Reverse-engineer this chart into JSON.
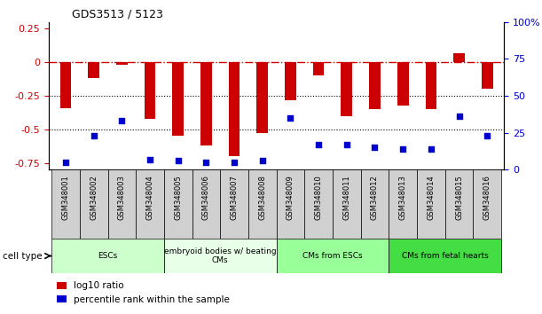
{
  "title": "GDS3513 / 5123",
  "samples": [
    "GSM348001",
    "GSM348002",
    "GSM348003",
    "GSM348004",
    "GSM348005",
    "GSM348006",
    "GSM348007",
    "GSM348008",
    "GSM348009",
    "GSM348010",
    "GSM348011",
    "GSM348012",
    "GSM348013",
    "GSM348014",
    "GSM348015",
    "GSM348016"
  ],
  "log10_ratio": [
    -0.34,
    -0.12,
    -0.02,
    -0.42,
    -0.55,
    -0.62,
    -0.7,
    -0.53,
    -0.28,
    -0.1,
    -0.4,
    -0.35,
    -0.32,
    -0.35,
    0.07,
    -0.2
  ],
  "percentile_rank": [
    5,
    23,
    33,
    7,
    6,
    5,
    5,
    6,
    35,
    17,
    17,
    15,
    14,
    14,
    36,
    23
  ],
  "cell_type_groups": [
    {
      "label": "ESCs",
      "start": 0,
      "end": 3,
      "color": "#ccffcc"
    },
    {
      "label": "embryoid bodies w/ beating\nCMs",
      "start": 4,
      "end": 7,
      "color": "#e8ffe8"
    },
    {
      "label": "CMs from ESCs",
      "start": 8,
      "end": 11,
      "color": "#99ff99"
    },
    {
      "label": "CMs from fetal hearts",
      "start": 12,
      "end": 15,
      "color": "#44dd44"
    }
  ],
  "bar_color": "#cc0000",
  "dot_color": "#0000cc",
  "ylim_left": [
    -0.8,
    0.3
  ],
  "ylim_right": [
    0,
    100
  ],
  "yticks_left": [
    -0.75,
    -0.5,
    -0.25,
    0,
    0.25
  ],
  "yticks_right": [
    0,
    25,
    50,
    75,
    100
  ],
  "hline_y": 0,
  "dotline1": -0.25,
  "dotline2": -0.5,
  "background_color": "#ffffff",
  "bar_width": 0.4
}
